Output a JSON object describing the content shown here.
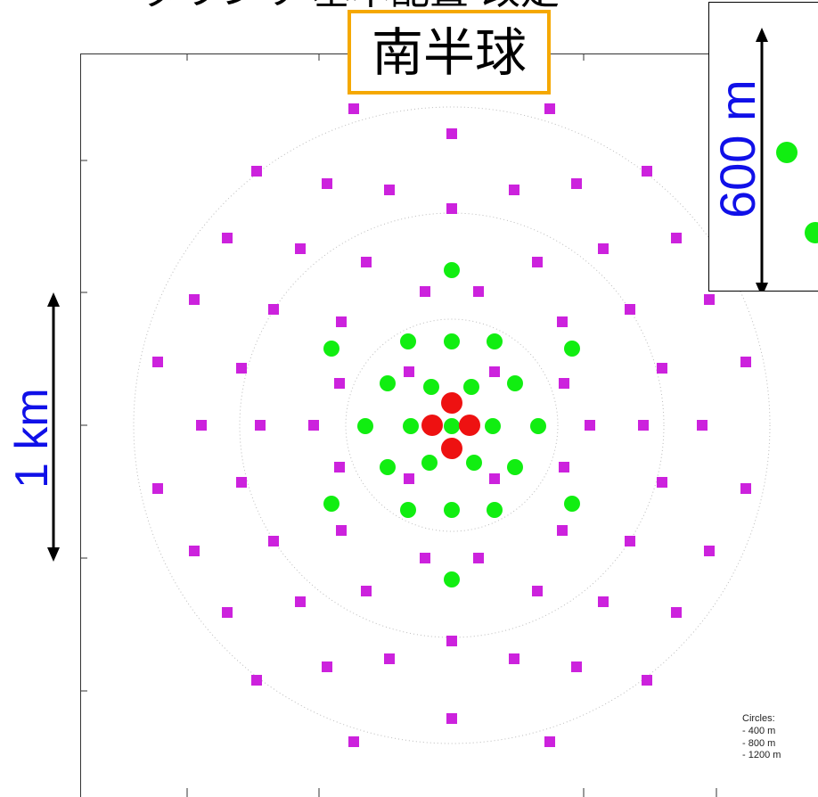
{
  "header": {
    "partial_title": "ダウンリ 基本配置 改定"
  },
  "hemisphere_label": "南半球",
  "inset_scale_label": "600 m",
  "scale_label": "1 km",
  "legend": {
    "title": "Circles:",
    "items": [
      "- 400 m",
      "- 800 m",
      "- 1200 m"
    ]
  },
  "colors": {
    "outer_station": "#cc22dd",
    "inner_station": "#11ee11",
    "core_station": "#ee1111",
    "label_border": "#f5a800",
    "scale_text": "#1010e8"
  },
  "stations": {
    "core": [
      [
        0,
        26
      ],
      [
        -22,
        0
      ],
      [
        20,
        0
      ],
      [
        0,
        -25
      ]
    ],
    "inner": [
      [
        0,
        -174
      ],
      [
        -135,
        -86
      ],
      [
        -49,
        -94
      ],
      [
        0,
        -94
      ],
      [
        48,
        -94
      ],
      [
        135,
        -86
      ],
      [
        -72,
        -47
      ],
      [
        -23,
        -43
      ],
      [
        22,
        -43
      ],
      [
        71,
        -47
      ],
      [
        -97,
        1
      ],
      [
        -46,
        1
      ],
      [
        0,
        1
      ],
      [
        46,
        1
      ],
      [
        97,
        1
      ],
      [
        -72,
        47
      ],
      [
        -25,
        42
      ],
      [
        25,
        42
      ],
      [
        71,
        47
      ],
      [
        -135,
        88
      ],
      [
        -49,
        95
      ],
      [
        0,
        95
      ],
      [
        48,
        95
      ],
      [
        135,
        88
      ],
      [
        0,
        173
      ]
    ],
    "outer": [
      [
        -110,
        -355
      ],
      [
        110,
        -355
      ],
      [
        0,
        -327
      ],
      [
        -219,
        -285
      ],
      [
        -140,
        -271
      ],
      [
        -70,
        -264
      ],
      [
        70,
        -264
      ],
      [
        140,
        -271
      ],
      [
        219,
        -285
      ],
      [
        0,
        -243
      ],
      [
        -252,
        -210
      ],
      [
        -170,
        -198
      ],
      [
        -96,
        -183
      ],
      [
        96,
        -183
      ],
      [
        170,
        -198
      ],
      [
        252,
        -210
      ],
      [
        -30,
        -150
      ],
      [
        30,
        -150
      ],
      [
        -289,
        -141
      ],
      [
        -200,
        -130
      ],
      [
        -124,
        -116
      ],
      [
        124,
        -116
      ],
      [
        200,
        -130
      ],
      [
        289,
        -141
      ],
      [
        -48,
        -60
      ],
      [
        48,
        -60
      ],
      [
        -330,
        -71
      ],
      [
        -236,
        -64
      ],
      [
        -126,
        -47
      ],
      [
        126,
        -47
      ],
      [
        236,
        -64
      ],
      [
        330,
        -71
      ],
      [
        -281,
        0
      ],
      [
        -215,
        0
      ],
      [
        -155,
        0
      ],
      [
        155,
        0
      ],
      [
        215,
        0
      ],
      [
        281,
        0
      ],
      [
        -48,
        60
      ],
      [
        48,
        60
      ],
      [
        -330,
        71
      ],
      [
        -236,
        64
      ],
      [
        -126,
        47
      ],
      [
        126,
        47
      ],
      [
        236,
        64
      ],
      [
        330,
        71
      ],
      [
        -30,
        149
      ],
      [
        30,
        149
      ],
      [
        -289,
        141
      ],
      [
        -200,
        130
      ],
      [
        -124,
        118
      ],
      [
        124,
        118
      ],
      [
        200,
        130
      ],
      [
        289,
        141
      ],
      [
        0,
        242
      ],
      [
        -252,
        210
      ],
      [
        -170,
        198
      ],
      [
        -96,
        186
      ],
      [
        96,
        186
      ],
      [
        170,
        198
      ],
      [
        252,
        210
      ],
      [
        -219,
        286
      ],
      [
        -140,
        271
      ],
      [
        -70,
        262
      ],
      [
        70,
        262
      ],
      [
        140,
        271
      ],
      [
        219,
        286
      ],
      [
        0,
        329
      ],
      [
        -110,
        355
      ],
      [
        110,
        355
      ]
    ],
    "inset_inner": [
      [
        0,
        0
      ],
      [
        32,
        90
      ]
    ]
  }
}
